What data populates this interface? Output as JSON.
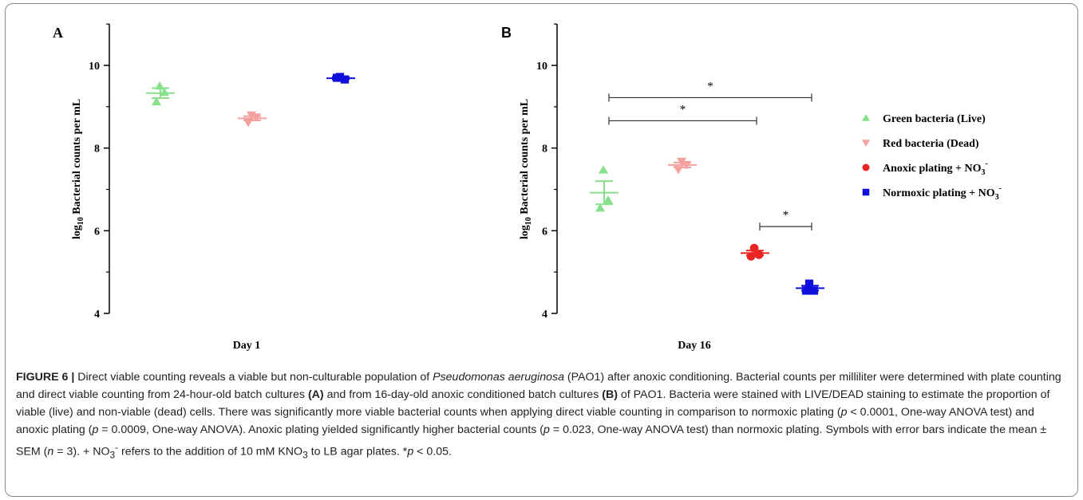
{
  "chart_data": [
    {
      "panel": "A",
      "type": "scatter",
      "xlabel": "Day 1",
      "ylabel": "log10 Bacterial counts per mL",
      "ylim": [
        4,
        11
      ],
      "yticks": [
        4,
        6,
        8,
        10
      ],
      "grid": false,
      "series": [
        {
          "name": "Green bacteria (Live)",
          "color": "#88e08c",
          "marker": "triangle-up",
          "points": [
            9.5,
            9.35,
            9.12
          ],
          "mean": 9.33,
          "sem": 0.12
        },
        {
          "name": "Red bacteria (Dead)",
          "color": "#f4a09c",
          "marker": "triangle-down",
          "points": [
            8.8,
            8.75,
            8.62
          ],
          "mean": 8.72,
          "sem": 0.05
        },
        {
          "name": "Normoxic plating + NO3-",
          "color": "#1010dd",
          "marker": "square",
          "points": [
            9.72,
            9.66,
            9.7
          ],
          "mean": 9.69,
          "sem": 0.03
        }
      ]
    },
    {
      "panel": "B",
      "type": "scatter",
      "xlabel": "Day 16",
      "ylabel": "log10 Bacterial counts per mL",
      "ylim": [
        4,
        11
      ],
      "yticks": [
        4,
        6,
        8,
        10
      ],
      "grid": false,
      "legend_position": "right",
      "series": [
        {
          "name": "Green bacteria (Live)",
          "color": "#88e08c",
          "marker": "triangle-up",
          "points": [
            7.47,
            6.74,
            6.55
          ],
          "mean": 6.92,
          "sem": 0.28
        },
        {
          "name": "Red bacteria (Dead)",
          "color": "#f4a09c",
          "marker": "triangle-down",
          "points": [
            7.68,
            7.6,
            7.48
          ],
          "mean": 7.59,
          "sem": 0.06
        },
        {
          "name": "Anoxic plating + NO3-",
          "color": "#e82424",
          "marker": "circle",
          "points": [
            5.58,
            5.42,
            5.38
          ],
          "mean": 5.46,
          "sem": 0.06
        },
        {
          "name": "Normoxic plating + NO3-",
          "color": "#1010dd",
          "marker": "square",
          "points": [
            4.72,
            4.55,
            4.55
          ],
          "mean": 4.61,
          "sem": 0.06
        }
      ],
      "significance": [
        {
          "from": "Green bacteria (Live)",
          "to": "Normoxic plating + NO3-",
          "y": 9.22,
          "label": "*"
        },
        {
          "from": "Green bacteria (Live)",
          "to": "Anoxic plating + NO3-",
          "y": 8.66,
          "label": "*"
        },
        {
          "from": "Anoxic plating + NO3-",
          "to": "Normoxic plating + NO3-",
          "y": 6.1,
          "label": "*"
        }
      ]
    }
  ],
  "legend": [
    {
      "label": "Green bacteria (Live)",
      "sup": "",
      "marker": "triangle-up",
      "color": "#88e08c"
    },
    {
      "label": "Red bacteria (Dead)",
      "sup": "",
      "marker": "triangle-down",
      "color": "#f4a09c"
    },
    {
      "label": "Anoxic plating + NO",
      "sub": "3",
      "sup": "-",
      "marker": "circle",
      "color": "#e82424"
    },
    {
      "label": "Normoxic plating + NO",
      "sub": "3",
      "sup": "-",
      "marker": "square",
      "color": "#1010dd"
    }
  ],
  "caption": {
    "label": "FIGURE 6 |",
    "t1": " Direct viable counting reveals a viable but non-culturable population of ",
    "species": "Pseudomonas aeruginosa",
    "t2": " (PAO1) after anoxic conditioning. Bacterial counts per milliliter were determined with plate counting and direct viable counting from 24-hour-old batch cultures ",
    "refA": "(A)",
    "t3": " and from 16-day-old anoxic conditioned batch cultures ",
    "refB": "(B)",
    "t4": " of PAO1. Bacteria were stained with LIVE/DEAD staining to estimate the proportion of viable (live) and non-viable (dead) cells. There was significantly more viable bacterial counts when applying direct viable counting in comparison to normoxic plating (",
    "p1": "p",
    "t5": " < 0.0001, One-way ANOVA test) and anoxic plating (",
    "p2": "p",
    "t6": " = 0.0009, One-way ANOVA). Anoxic plating yielded significantly higher bacterial counts (",
    "p3": "p",
    "t7": " = 0.023, One-way ANOVA test) than normoxic plating. Symbols with error bars indicate the mean ± SEM (",
    "n": "n",
    "t8": " = 3). + NO",
    "sub1": "3",
    "sup1": "-",
    "t9": " refers to the addition of 10 mM KNO",
    "sub2": "3",
    "t10": " to LB agar plates. *",
    "p4": "p",
    "t11": " < 0.05."
  }
}
